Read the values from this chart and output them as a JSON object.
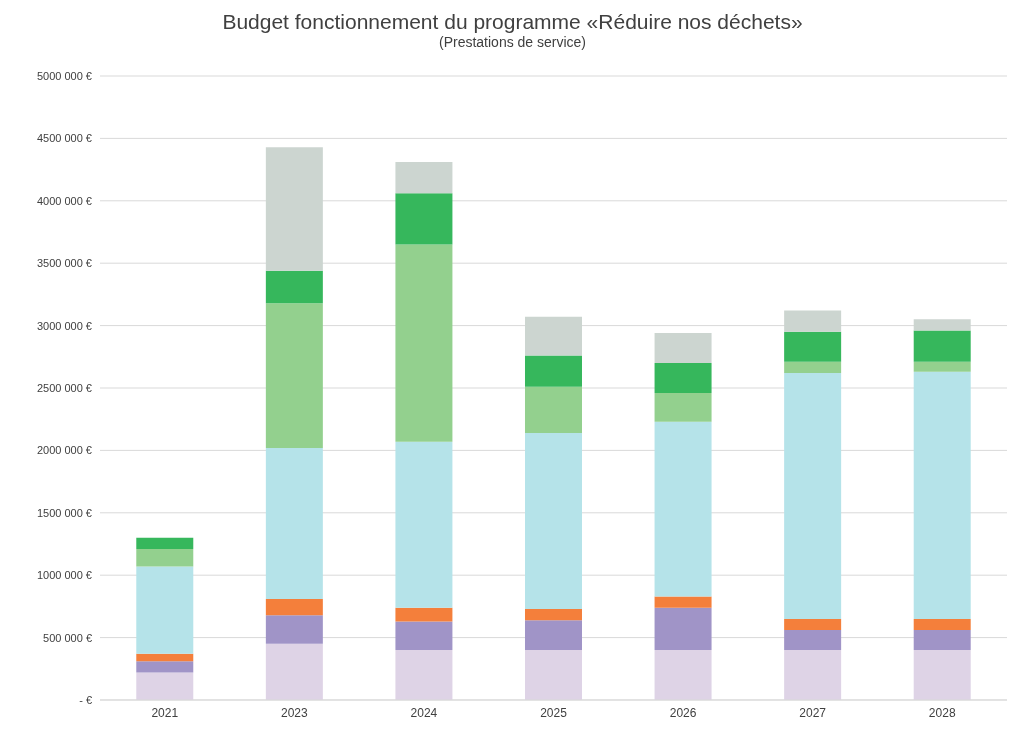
{
  "chart_data": {
    "type": "bar",
    "title": "Budget fonctionnement du programme «Réduire nos déchets»",
    "subtitle": "(Prestations de service)",
    "categories": [
      "2021",
      "2023",
      "2024",
      "2025",
      "2026",
      "2027",
      "2028"
    ],
    "stacked": true,
    "series": [
      {
        "color": "#ded3e6",
        "values": [
          220000,
          450000,
          400000,
          400000,
          400000,
          400000,
          400000
        ]
      },
      {
        "color": "#a094c7",
        "values": [
          90000,
          230000,
          230000,
          240000,
          340000,
          160000,
          160000
        ]
      },
      {
        "color": "#f47f3b",
        "values": [
          60000,
          130000,
          110000,
          90000,
          90000,
          90000,
          90000
        ]
      },
      {
        "color": "#b5e3e9",
        "values": [
          700000,
          1210000,
          1330000,
          1410000,
          1400000,
          1970000,
          1980000
        ]
      },
      {
        "color": "#93d08e",
        "values": [
          140000,
          1160000,
          1580000,
          370000,
          230000,
          90000,
          80000
        ]
      },
      {
        "color": "#36b75c",
        "values": [
          90000,
          260000,
          410000,
          250000,
          240000,
          240000,
          250000
        ]
      },
      {
        "color": "#ccd5d0",
        "values": [
          0,
          990000,
          250000,
          310000,
          240000,
          170000,
          90000
        ]
      }
    ],
    "ylim": [
      0,
      5000000
    ],
    "yticks": [
      {
        "value": 0,
        "label": "-  €"
      },
      {
        "value": 500000,
        "label": "500 000 €"
      },
      {
        "value": 1000000,
        "label": "1000 000 €"
      },
      {
        "value": 1500000,
        "label": "1500 000 €"
      },
      {
        "value": 2000000,
        "label": "2000 000 €"
      },
      {
        "value": 2500000,
        "label": "2500 000 €"
      },
      {
        "value": 3000000,
        "label": "3000 000 €"
      },
      {
        "value": 3500000,
        "label": "3500 000 €"
      },
      {
        "value": 4000000,
        "label": "4000 000 €"
      },
      {
        "value": 4500000,
        "label": "4500 000 €"
      },
      {
        "value": 5000000,
        "label": "5000 000 €"
      }
    ],
    "grid": "y",
    "legend": false
  }
}
